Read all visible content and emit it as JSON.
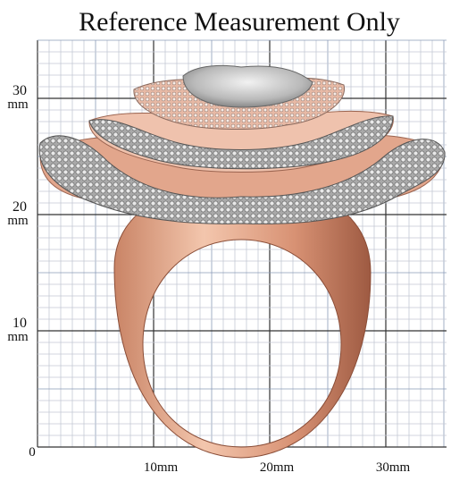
{
  "header": {
    "title": "Reference Measurement Only"
  },
  "x_labels": [
    "10mm",
    "20mm",
    "30mm"
  ],
  "y_labels": [
    {
      "number": "30",
      "unit": "mm"
    },
    {
      "number": "20",
      "unit": "mm"
    },
    {
      "number": "10",
      "unit": "mm"
    }
  ],
  "origin_label": "0"
}
